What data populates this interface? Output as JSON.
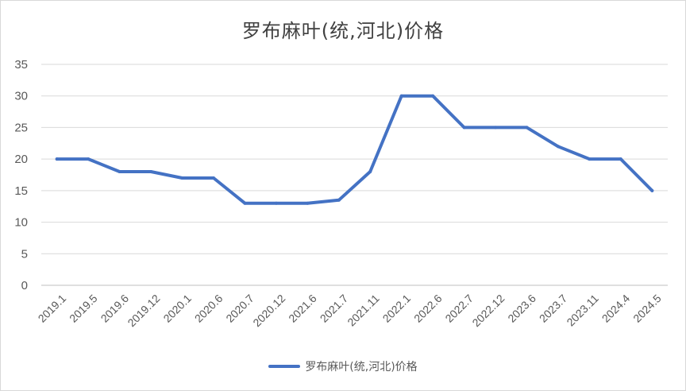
{
  "chart_data": {
    "type": "line",
    "title": "罗布麻叶(统,河北)价格",
    "categories": [
      "2019.1",
      "2019.5",
      "2019.6",
      "2019.12",
      "2020.1",
      "2020.6",
      "2020.7",
      "2020.12",
      "2021.6",
      "2021.7",
      "2021.11",
      "2022.1",
      "2022.6",
      "2022.7",
      "2022.12",
      "2023.6",
      "2023.7",
      "2023.11",
      "2024.4",
      "2024.5"
    ],
    "series": [
      {
        "name": "罗布麻叶(统,河北)价格",
        "values": [
          20,
          20,
          18,
          18,
          17,
          17,
          13,
          13,
          13,
          13.5,
          18,
          30,
          30,
          25,
          25,
          25,
          22,
          20,
          20,
          15
        ],
        "color": "#4472c4"
      }
    ],
    "ylim": [
      0,
      35
    ],
    "yticks": [
      0,
      5,
      10,
      15,
      20,
      25,
      30,
      35
    ],
    "grid": true,
    "legend": "bottom"
  }
}
